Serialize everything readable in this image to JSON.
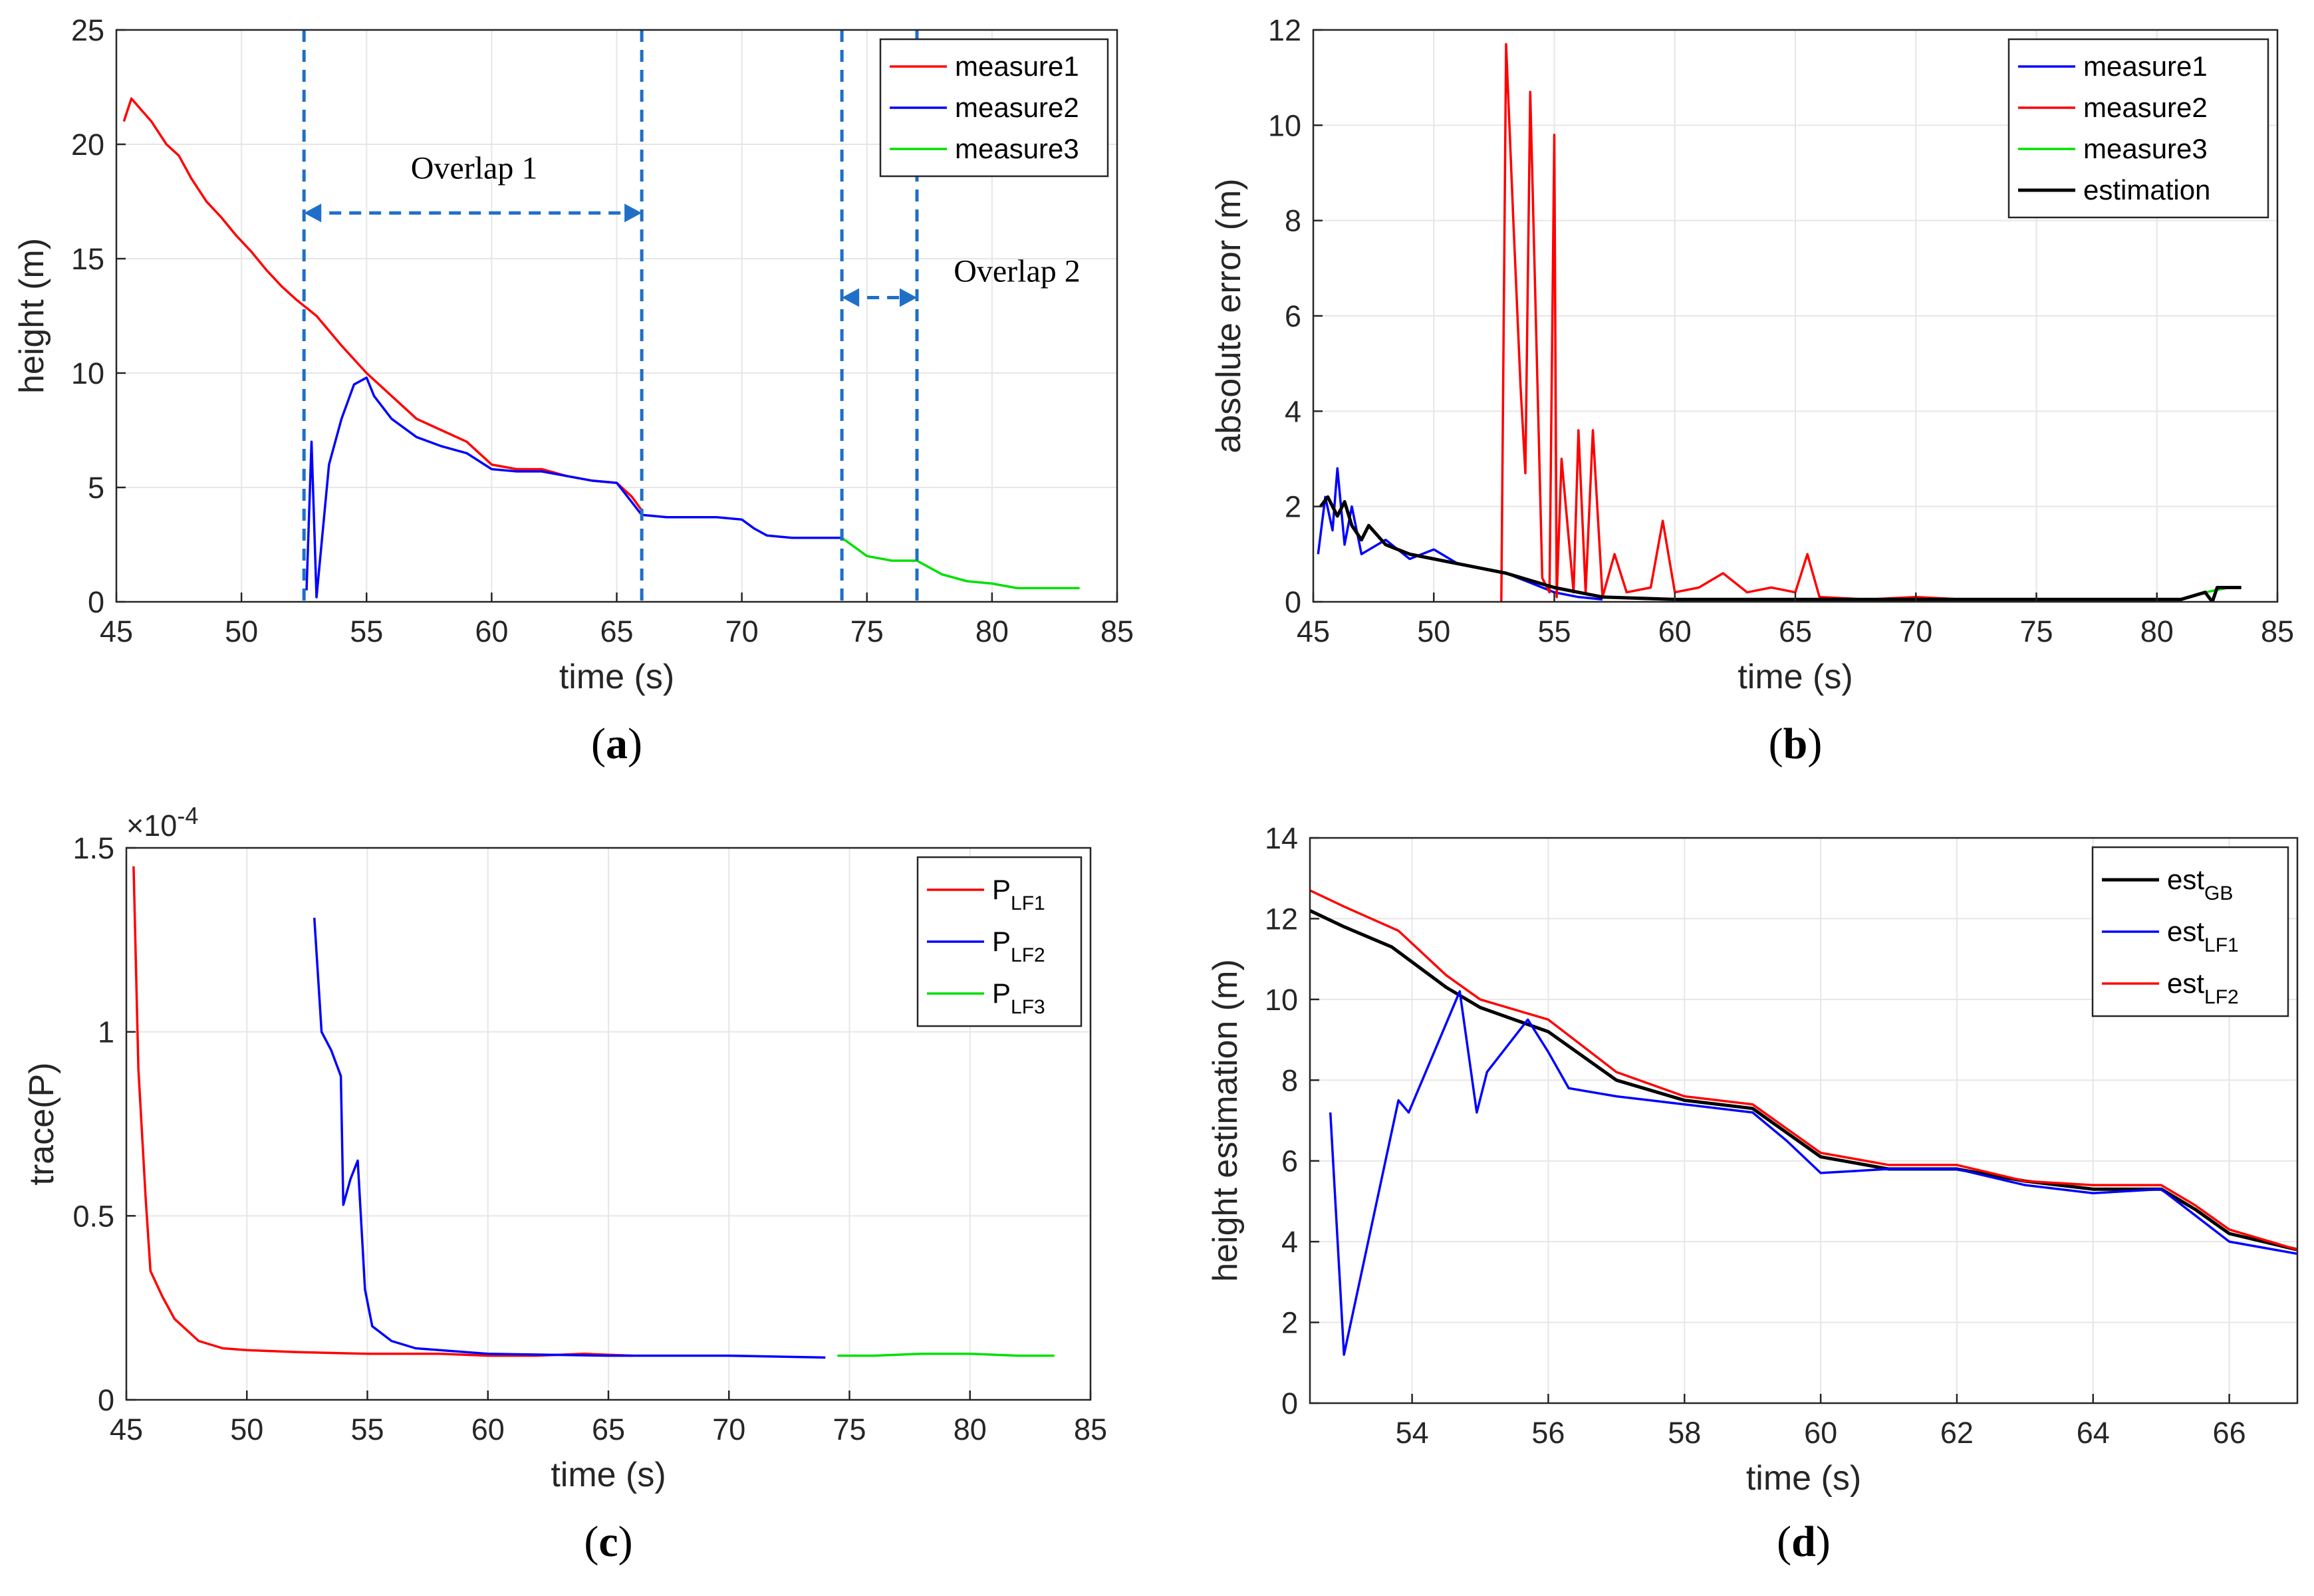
{
  "panels": [
    {
      "id": "a",
      "label_open": "(",
      "label_letter": "a",
      "label_close": ")",
      "chart_data": {
        "type": "line",
        "xlabel": "time (s)",
        "ylabel": "height (m)",
        "xlim": [
          45,
          85
        ],
        "ylim": [
          0,
          25
        ],
        "xticks": [
          "45",
          "50",
          "55",
          "60",
          "65",
          "70",
          "75",
          "80",
          "85"
        ],
        "yticks": [
          "0",
          "5",
          "10",
          "15",
          "20",
          "25"
        ],
        "grid": true,
        "legend_position": "top-right",
        "series": [
          {
            "name": "measure1",
            "color": "#ff0000",
            "x": [
              45.3,
              45.6,
              46.0,
              46.4,
              47.0,
              47.5,
              48.0,
              48.6,
              49.2,
              49.8,
              50.4,
              51.0,
              51.6,
              52.2,
              53.0,
              54.0,
              55.0,
              56.0,
              57.0,
              58.0,
              59.0,
              60.0,
              61.0,
              62.0,
              63.0,
              64.0,
              65.0,
              65.6,
              66.0
            ],
            "y": [
              21.0,
              22.0,
              21.5,
              21.0,
              20.0,
              19.5,
              18.5,
              17.5,
              16.8,
              16.0,
              15.3,
              14.5,
              13.8,
              13.2,
              12.5,
              11.2,
              10.0,
              9.0,
              8.0,
              7.5,
              7.0,
              6.0,
              5.8,
              5.8,
              5.5,
              5.3,
              5.2,
              4.6,
              4.0
            ]
          },
          {
            "name": "measure2",
            "color": "#0000ff",
            "x": [
              52.6,
              52.8,
              53.0,
              53.5,
              54.0,
              54.5,
              55.0,
              55.3,
              56.0,
              57.0,
              58.0,
              59.0,
              60.0,
              61.0,
              62.0,
              63.0,
              64.0,
              65.0,
              66.0,
              67.0,
              68.0,
              69.0,
              70.0,
              70.5,
              71.0,
              72.0,
              73.0,
              74.0
            ],
            "y": [
              0.5,
              7.0,
              0.2,
              6.0,
              8.0,
              9.5,
              9.8,
              9.0,
              8.0,
              7.2,
              6.8,
              6.5,
              5.8,
              5.7,
              5.7,
              5.5,
              5.3,
              5.2,
              3.8,
              3.7,
              3.7,
              3.7,
              3.6,
              3.2,
              2.9,
              2.8,
              2.8,
              2.8
            ]
          },
          {
            "name": "measure3",
            "color": "#00e000",
            "x": [
              74.0,
              75.0,
              76.0,
              77.0,
              78.0,
              79.0,
              80.0,
              81.0,
              82.0,
              83.5
            ],
            "y": [
              2.8,
              2.0,
              1.8,
              1.8,
              1.2,
              0.9,
              0.8,
              0.6,
              0.6,
              0.6
            ]
          }
        ],
        "vlines": [
          52.5,
          66.0,
          74.0,
          77.0
        ],
        "annotations": [
          {
            "text": "Overlap 1",
            "x1": 52.5,
            "x2": 66.0,
            "y": 17.0,
            "text_x": 59.3,
            "text_y": 18.5
          },
          {
            "text": "Overlap 2",
            "x1": 74.0,
            "x2": 77.0,
            "y": 13.3,
            "text_x": 81.0,
            "text_y": 14.0
          }
        ]
      }
    },
    {
      "id": "b",
      "label_open": "(",
      "label_letter": "b",
      "label_close": ")",
      "chart_data": {
        "type": "line",
        "xlabel": "time (s)",
        "ylabel": "absolute error (m)",
        "xlim": [
          45,
          85
        ],
        "ylim": [
          0,
          12
        ],
        "xticks": [
          "45",
          "50",
          "55",
          "60",
          "65",
          "70",
          "75",
          "80",
          "85"
        ],
        "yticks": [
          "0",
          "2",
          "4",
          "6",
          "8",
          "10",
          "12"
        ],
        "grid": true,
        "legend_position": "top-right",
        "series": [
          {
            "name": "measure1",
            "color": "#0000ff",
            "x": [
              45.2,
              45.5,
              45.8,
              46.0,
              46.3,
              46.6,
              47.0,
              48.0,
              49.0,
              50.0,
              51.0,
              52.0,
              53.0,
              54.0,
              55.0,
              56.0,
              57.0
            ],
            "y": [
              1.0,
              2.2,
              1.5,
              2.8,
              1.2,
              2.0,
              1.0,
              1.3,
              0.9,
              1.1,
              0.8,
              0.7,
              0.6,
              0.4,
              0.2,
              0.1,
              0.05
            ]
          },
          {
            "name": "measure2",
            "color": "#ff0000",
            "x": [
              52.8,
              53.0,
              53.3,
              53.6,
              53.8,
              54.0,
              54.5,
              54.8,
              55.0,
              55.1,
              55.3,
              55.8,
              56.0,
              56.3,
              56.6,
              57.0,
              57.5,
              58.0,
              59.0,
              59.5,
              60.0,
              61.0,
              62.0,
              63.0,
              64.0,
              65.0,
              65.5,
              66.0,
              68.0,
              70.0,
              72.0,
              74.0
            ],
            "y": [
              0.0,
              11.7,
              8.0,
              4.5,
              2.7,
              10.7,
              0.5,
              0.2,
              9.8,
              0.1,
              3.0,
              0.2,
              3.6,
              0.2,
              3.6,
              0.1,
              1.0,
              0.2,
              0.3,
              1.7,
              0.2,
              0.3,
              0.6,
              0.2,
              0.3,
              0.2,
              1.0,
              0.1,
              0.05,
              0.1,
              0.05,
              0.05
            ]
          },
          {
            "name": "measure3",
            "color": "#00e000",
            "x": [
              74.0,
              76.0,
              78.0,
              80.0,
              81.0,
              82.0,
              83.0,
              83.5
            ],
            "y": [
              0.05,
              0.05,
              0.05,
              0.05,
              0.05,
              0.2,
              0.3,
              0.3
            ]
          },
          {
            "name": "estimation",
            "color": "#000000",
            "x": [
              45.3,
              45.6,
              46.0,
              46.3,
              46.6,
              47.0,
              47.3,
              48.0,
              49.0,
              50.0,
              51.0,
              52.0,
              53.0,
              54.0,
              55.0,
              56.0,
              57.0,
              60.0,
              65.0,
              70.0,
              75.0,
              80.0,
              81.0,
              82.0,
              82.3,
              82.5,
              83.0,
              83.5
            ],
            "y": [
              2.0,
              2.2,
              1.8,
              2.1,
              1.6,
              1.3,
              1.6,
              1.2,
              1.0,
              0.9,
              0.8,
              0.7,
              0.6,
              0.45,
              0.3,
              0.2,
              0.1,
              0.05,
              0.05,
              0.05,
              0.05,
              0.05,
              0.05,
              0.2,
              0.0,
              0.3,
              0.3,
              0.3
            ]
          }
        ]
      }
    },
    {
      "id": "c",
      "label_open": "(",
      "label_letter": "c",
      "label_close": ")",
      "chart_data": {
        "type": "line",
        "xlabel": "time (s)",
        "ylabel": "trace(P)",
        "xlim": [
          45,
          85
        ],
        "ylim": [
          0,
          1.5
        ],
        "y_multiplier_text": "×10",
        "y_multiplier_exp": "-4",
        "xticks": [
          "45",
          "50",
          "55",
          "60",
          "65",
          "70",
          "75",
          "80",
          "85"
        ],
        "yticks": [
          "0",
          "0.5",
          "1",
          "1.5"
        ],
        "grid": true,
        "legend_position": "top-right",
        "series": [
          {
            "name": "P",
            "sub": "LF1",
            "color": "#ff0000",
            "x": [
              45.3,
              45.5,
              45.8,
              46.0,
              46.5,
              47.0,
              48.0,
              49.0,
              50.0,
              52.0,
              55.0,
              58.0,
              60.0,
              62.0,
              64.0,
              66.0
            ],
            "y": [
              1.45,
              0.9,
              0.55,
              0.35,
              0.28,
              0.22,
              0.16,
              0.14,
              0.135,
              0.13,
              0.125,
              0.125,
              0.12,
              0.12,
              0.125,
              0.12
            ]
          },
          {
            "name": "P",
            "sub": "LF2",
            "color": "#0000ff",
            "x": [
              52.8,
              53.1,
              53.5,
              53.9,
              54.0,
              54.3,
              54.6,
              54.9,
              55.2,
              56.0,
              57.0,
              60.0,
              65.0,
              70.0,
              74.0
            ],
            "y": [
              1.31,
              1.0,
              0.95,
              0.88,
              0.53,
              0.6,
              0.65,
              0.3,
              0.2,
              0.16,
              0.14,
              0.125,
              0.12,
              0.12,
              0.115
            ]
          },
          {
            "name": "P",
            "sub": "LF3",
            "color": "#00e000",
            "x": [
              74.5,
              76.0,
              78.0,
              80.0,
              82.0,
              83.5
            ],
            "y": [
              0.12,
              0.12,
              0.125,
              0.125,
              0.12,
              0.12
            ]
          }
        ]
      }
    },
    {
      "id": "d",
      "label_open": "(",
      "label_letter": "d",
      "label_close": ")",
      "chart_data": {
        "type": "line",
        "xlabel": "time (s)",
        "ylabel": "height estimation (m)",
        "xlim": [
          52.5,
          67
        ],
        "ylim": [
          0,
          14
        ],
        "xticks": [
          "54",
          "56",
          "58",
          "60",
          "62",
          "64",
          "66"
        ],
        "xtick_values": [
          54,
          56,
          58,
          60,
          62,
          64,
          66
        ],
        "yticks": [
          "0",
          "2",
          "4",
          "6",
          "8",
          "10",
          "12",
          "14"
        ],
        "grid": true,
        "legend_position": "top-right",
        "series": [
          {
            "name": "est",
            "sub": "GB",
            "color": "#000000",
            "x": [
              52.5,
              53.0,
              53.7,
              54.5,
              55.0,
              56.0,
              57.0,
              58.0,
              59.0,
              60.0,
              61.0,
              62.0,
              63.0,
              64.0,
              65.0,
              65.5,
              66.0,
              67.0
            ],
            "y": [
              12.2,
              11.8,
              11.3,
              10.3,
              9.8,
              9.2,
              8.0,
              7.5,
              7.3,
              6.1,
              5.8,
              5.8,
              5.5,
              5.3,
              5.3,
              4.8,
              4.2,
              3.8
            ]
          },
          {
            "name": "est",
            "sub": "LF1",
            "color": "#0000ff",
            "x": [
              52.8,
              53.0,
              53.8,
              53.95,
              54.7,
              54.95,
              55.1,
              55.7,
              56.0,
              56.3,
              57.0,
              58.0,
              59.0,
              59.5,
              60.0,
              61.0,
              62.0,
              63.0,
              64.0,
              65.0,
              66.0,
              67.0
            ],
            "y": [
              7.2,
              1.2,
              7.5,
              7.2,
              10.2,
              7.2,
              8.2,
              9.5,
              8.7,
              7.8,
              7.6,
              7.4,
              7.2,
              6.5,
              5.7,
              5.8,
              5.8,
              5.4,
              5.2,
              5.3,
              4.0,
              3.7
            ]
          },
          {
            "name": "est",
            "sub": "LF2",
            "color": "#ff0000",
            "x": [
              52.5,
              53.0,
              53.8,
              54.5,
              55.0,
              56.0,
              57.0,
              58.0,
              59.0,
              60.0,
              61.0,
              62.0,
              63.0,
              64.0,
              65.0,
              65.5,
              66.0,
              67.0
            ],
            "y": [
              12.7,
              12.3,
              11.7,
              10.6,
              10.0,
              9.5,
              8.2,
              7.6,
              7.4,
              6.2,
              5.9,
              5.9,
              5.5,
              5.4,
              5.4,
              4.9,
              4.3,
              3.8
            ]
          }
        ]
      }
    }
  ]
}
